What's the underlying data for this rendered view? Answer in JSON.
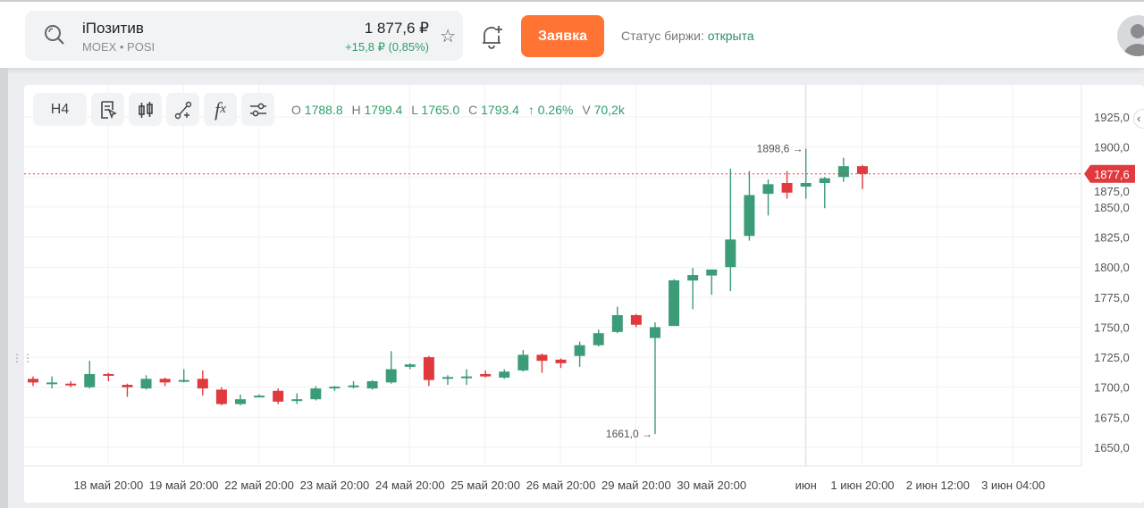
{
  "header": {
    "instrument_name": "iПозитив",
    "ticker": "MOEX • POSI",
    "price": "1 877,6 ₽",
    "change": "+15,8 ₽ (0,85%)",
    "order_button": "Заявка",
    "status_label": "Статус биржи:",
    "status_value": "открыта"
  },
  "toolbar": {
    "timeframe": "H4",
    "ohlc": {
      "o_label": "O",
      "o": "1788.8",
      "h_label": "H",
      "h": "1799.4",
      "l_label": "L",
      "l": "1765.0",
      "c_label": "C",
      "c": "1793.4",
      "change": "↑ 0.26%",
      "v_label": "V",
      "v": "70,2k"
    }
  },
  "colors": {
    "up": "#3c9c78",
    "down": "#e0393e",
    "accent": "#ff7433",
    "last_price": "#e0393e"
  },
  "chart_data": {
    "type": "candlestick",
    "ylim": [
      1640,
      1935
    ],
    "y_ticks": [
      "1925,0",
      "1900,0",
      "1875,0",
      "1850,0",
      "1825,0",
      "1800,0",
      "1775,0",
      "1750,0",
      "1725,0",
      "1700,0",
      "1675,0",
      "1650,0"
    ],
    "y_tick_values": [
      1925,
      1900,
      1875,
      1850,
      1825,
      1800,
      1775,
      1750,
      1725,
      1700,
      1675,
      1650
    ],
    "last_price": 1877.6,
    "last_price_label": "1877,6",
    "x_labels": [
      {
        "i": 4,
        "text": "18 май 20:00"
      },
      {
        "i": 8,
        "text": "19 май 20:00"
      },
      {
        "i": 12,
        "text": "22 май 20:00"
      },
      {
        "i": 16,
        "text": "23 май 20:00"
      },
      {
        "i": 20,
        "text": "24 май 20:00"
      },
      {
        "i": 24,
        "text": "25 май 20:00"
      },
      {
        "i": 28,
        "text": "26 май 20:00"
      },
      {
        "i": 32,
        "text": "29 май 20:00"
      },
      {
        "i": 36,
        "text": "30 май 20:00"
      },
      {
        "i": 41,
        "text": "июн"
      },
      {
        "i": 44,
        "text": "1 июн 20:00"
      },
      {
        "i": 48,
        "text": "2 июн 12:00"
      },
      {
        "i": 52,
        "text": "3 июн 04:00"
      }
    ],
    "annotations": [
      {
        "i": 41,
        "value": 1898.6,
        "text": "1898,6 →"
      },
      {
        "i": 33,
        "value": 1661.0,
        "text": "1661,0 →"
      }
    ],
    "candles": [
      [
        1707,
        1709,
        1701,
        1704
      ],
      [
        1704,
        1709,
        1699,
        1704
      ],
      [
        1703,
        1705,
        1700,
        1702
      ],
      [
        1700,
        1722,
        1699,
        1711
      ],
      [
        1711,
        1712,
        1705,
        1710
      ],
      [
        1702,
        1703,
        1692,
        1700
      ],
      [
        1699,
        1710,
        1698,
        1707
      ],
      [
        1707,
        1708,
        1701,
        1704
      ],
      [
        1705,
        1715,
        1704,
        1706
      ],
      [
        1707,
        1714,
        1693,
        1699
      ],
      [
        1698,
        1700,
        1685,
        1686
      ],
      [
        1686,
        1694,
        1685,
        1690
      ],
      [
        1693,
        1694,
        1692,
        1693
      ],
      [
        1697,
        1699,
        1686,
        1688
      ],
      [
        1689,
        1695,
        1686,
        1690
      ],
      [
        1690,
        1701,
        1689,
        1699
      ],
      [
        1700,
        1701,
        1697,
        1700.5
      ],
      [
        1701,
        1705,
        1699,
        1701.5
      ],
      [
        1699,
        1706,
        1698,
        1705
      ],
      [
        1704,
        1730,
        1703,
        1715
      ],
      [
        1717,
        1720,
        1715,
        1719
      ],
      [
        1725,
        1726,
        1701,
        1706
      ],
      [
        1708,
        1710,
        1702,
        1708.5
      ],
      [
        1708,
        1715,
        1702,
        1709
      ],
      [
        1711,
        1714,
        1708,
        1709
      ],
      [
        1708,
        1715,
        1707,
        1713
      ],
      [
        1714,
        1731,
        1713,
        1727
      ],
      [
        1727,
        1728,
        1712,
        1722
      ],
      [
        1723,
        1724,
        1716,
        1720
      ],
      [
        1726,
        1738,
        1717,
        1735
      ],
      [
        1735,
        1748,
        1734,
        1745
      ],
      [
        1746,
        1767,
        1745,
        1760
      ],
      [
        1760,
        1761,
        1750,
        1752
      ],
      [
        1741,
        1754,
        1661,
        1750
      ],
      [
        1751,
        1790,
        1751,
        1789
      ],
      [
        1788.8,
        1799.4,
        1765.0,
        1793.4
      ],
      [
        1793,
        1798,
        1777,
        1798
      ],
      [
        1800,
        1882,
        1780,
        1823
      ],
      [
        1826,
        1880,
        1822,
        1860
      ],
      [
        1861,
        1873,
        1843,
        1869
      ],
      [
        1870,
        1880,
        1857,
        1862
      ],
      [
        1867,
        1898.6,
        1857,
        1870
      ],
      [
        1870,
        1875,
        1849,
        1874
      ],
      [
        1875,
        1891,
        1871,
        1884
      ],
      [
        1884,
        1885,
        1865,
        1877.6
      ]
    ]
  }
}
